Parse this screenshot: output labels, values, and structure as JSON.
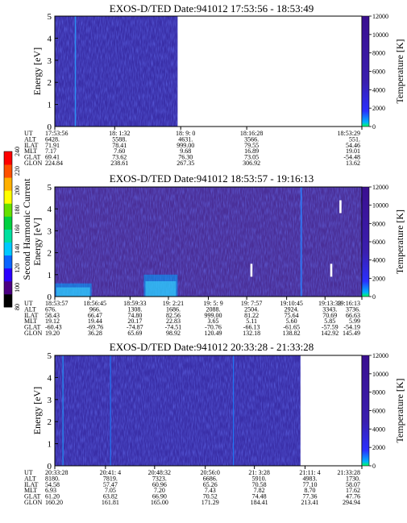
{
  "scalebar": {
    "label": "Second Harmonic Current",
    "ticks": [
      "80",
      "100",
      "120",
      "140",
      "160",
      "180",
      "200",
      "220",
      "240"
    ],
    "colors": [
      "#000000",
      "#4b0082",
      "#2a00ff",
      "#0a64ff",
      "#00c8ff",
      "#00e0a0",
      "#00d040",
      "#66e000",
      "#ffff00",
      "#ffb000",
      "#ff5000",
      "#ff0000"
    ]
  },
  "chart_data": [
    {
      "type": "heatmap",
      "title": "EXOS-D/TED   Date:941012   17:53:56 - 18:53:49",
      "ylabel": "Energy [eV]",
      "ylim": [
        0,
        5
      ],
      "yticks": [
        "0",
        "1",
        "2",
        "3",
        "4",
        "5"
      ],
      "colorbar": {
        "label": "Temperature [K]",
        "ticks": [
          "0",
          "2000",
          "4000",
          "6000",
          "8000",
          "10000",
          "12000"
        ],
        "range": [
          0,
          12000
        ]
      },
      "data_extent": 0.4,
      "baseline": "#3a2fa8",
      "streaks": [
        {
          "x": 0.065,
          "w": 0.004,
          "color": "#2aa0ff"
        }
      ],
      "marks": [],
      "orbit": {
        "labels": [
          "UT",
          "ALT",
          "ILAT",
          "MLT",
          "GLAT",
          "GLON"
        ],
        "columns": [
          {
            "x": 0.0,
            "values": [
              "17:53:56",
              "6428.",
              "71.91",
              "7.17",
              "69.41",
              "224.84"
            ]
          },
          {
            "x": 0.195,
            "values": [
              "18: 1:32",
              "5588.",
              "78.41",
              "7.60",
              "73.62",
              "238.61"
            ]
          },
          {
            "x": 0.41,
            "values": [
              "18: 9: 0",
              "4631.",
              "999.00",
              "9.68",
              "76.30",
              "267.35"
            ]
          },
          {
            "x": 0.625,
            "values": [
              "18:16:28",
              "3566.",
              "79.55",
              "16.89",
              "73.05",
              "306.92"
            ]
          },
          {
            "x": 1.0,
            "values": [
              "18:53:29",
              "551.",
              "54.46",
              "19.01",
              "-54.48",
              "13.62"
            ]
          }
        ]
      }
    },
    {
      "type": "heatmap",
      "title": "EXOS-D/TED   Date:941012   18:53:57 - 19:16:13",
      "ylabel": "Energy [eV]",
      "ylim": [
        0,
        5
      ],
      "yticks": [
        "0",
        "1",
        "2",
        "3",
        "4",
        "5"
      ],
      "colorbar": {
        "label": "Temperature [K]",
        "ticks": [
          "0",
          "2000",
          "4000",
          "6000",
          "8000",
          "10000",
          "12000"
        ],
        "range": [
          0,
          12000
        ]
      },
      "data_extent": 1.0,
      "baseline": "#4a2f98",
      "streaks": [
        {
          "x": 0.8,
          "w": 0.005,
          "color": "#2a80ff"
        }
      ],
      "marks": [
        {
          "t": 0.93,
          "e": 4.1,
          "temp": 12000
        },
        {
          "t": 0.64,
          "e": 1.2,
          "temp": 12000
        },
        {
          "t": 0.9,
          "e": 1.2,
          "temp": 12000
        }
      ],
      "orbit": {
        "labels": [
          "UT",
          "ALT",
          "ILAT",
          "MLT",
          "GLAT",
          "GLON"
        ],
        "columns": [
          {
            "x": 0.0,
            "values": [
              "18:53:57",
              "676.",
              "58.43",
              "19.12",
              "-60.43",
              "19.20"
            ]
          },
          {
            "x": 0.115,
            "values": [
              "18:56:45",
              "966.",
              "66.47",
              "19.44",
              "-69.76",
              "36.28"
            ]
          },
          {
            "x": 0.245,
            "values": [
              "18:59:33",
              "1308.",
              "74.80",
              "20.17",
              "-74.87",
              "65.69"
            ]
          },
          {
            "x": 0.37,
            "values": [
              "19: 2:21",
              "1686.",
              "82.56",
              "22.83",
              "-74.51",
              "98.92"
            ]
          },
          {
            "x": 0.5,
            "values": [
              "19: 5: 9",
              "2088.",
              "999.00",
              "3.65",
              "-70.76",
              "120.49"
            ]
          },
          {
            "x": 0.625,
            "values": [
              "19: 7:57",
              "2504.",
              "81.22",
              "5.11",
              "-66.13",
              "132.18"
            ]
          },
          {
            "x": 0.755,
            "values": [
              "19:10:45",
              "2924.",
              "75.64",
              "5.60",
              "-61.65",
              "138.82"
            ]
          },
          {
            "x": 0.88,
            "values": [
              "19:13:33",
              "3343.",
              "70.69",
              "5.85",
              "-57.59",
              "142.92"
            ]
          },
          {
            "x": 1.0,
            "values": [
              "19:16:13",
              "3736.",
              "66.63",
              "5.99",
              "-54.19",
              "145.49"
            ]
          }
        ]
      }
    },
    {
      "type": "heatmap",
      "title": "EXOS-D/TED   Date:941012   20:33:28 - 21:33:28",
      "ylabel": "Energy [eV]",
      "ylim": [
        0,
        5
      ],
      "yticks": [
        "0",
        "1",
        "2",
        "3",
        "4",
        "5"
      ],
      "colorbar": {
        "label": "Temperature [K]",
        "ticks": [
          "0",
          "2000",
          "4000",
          "6000",
          "8000",
          "10000",
          "12000"
        ],
        "range": [
          0,
          12000
        ]
      },
      "data_extent": 0.8,
      "baseline": "#3a2fa8",
      "streaks": [
        {
          "x": 0.025,
          "w": 0.003,
          "color": "#1aa0ff"
        },
        {
          "x": 0.18,
          "w": 0.003,
          "color": "#1a80ff"
        },
        {
          "x": 0.58,
          "w": 0.003,
          "color": "#1a80ff"
        }
      ],
      "marks": [],
      "orbit": {
        "labels": [
          "UT",
          "ALT",
          "ILAT",
          "MLT",
          "GLAT",
          "GLON"
        ],
        "columns": [
          {
            "x": 0.0,
            "values": [
              "20:33:28",
              "8180.",
              "54.58",
              "6.93",
              "61.20",
              "160.20"
            ]
          },
          {
            "x": 0.165,
            "values": [
              "20:41: 4",
              "7819.",
              "57.47",
              "7.05",
              "63.82",
              "161.81"
            ]
          },
          {
            "x": 0.325,
            "values": [
              "20:48:32",
              "7323.",
              "60.96",
              "7.20",
              "66.90",
              "165.00"
            ]
          },
          {
            "x": 0.49,
            "values": [
              "20:56:0",
              "6686.",
              "65.26",
              "7.43",
              "70.52",
              "171.29"
            ]
          },
          {
            "x": 0.65,
            "values": [
              "21: 3:28",
              "5910.",
              "70.58",
              "7.82",
              "74.48",
              "184.41"
            ]
          },
          {
            "x": 0.815,
            "values": [
              "21:11: 4",
              "4983.",
              "77.10",
              "8.70",
              "77.36",
              "213.41"
            ]
          },
          {
            "x": 1.0,
            "values": [
              "21:33:28",
              "1730.",
              "58.07",
              "17.62",
              "47.76",
              "294.94"
            ]
          }
        ]
      }
    }
  ]
}
